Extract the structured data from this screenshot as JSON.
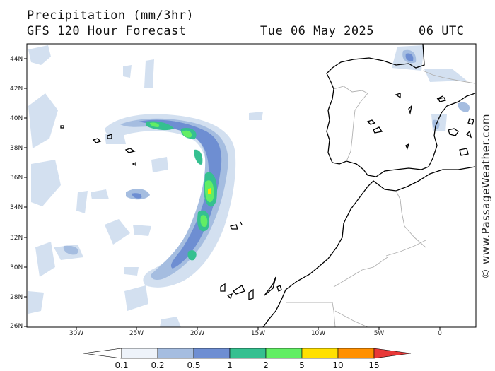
{
  "header": {
    "title": "Precipitation (mm/3hr)",
    "model": "GFS 120 Hour Forecast",
    "date": "Tue 06 May 2025",
    "time": "06 UTC"
  },
  "credit": "© www.PassageWeather.com",
  "axes": {
    "lat_labels": [
      "44N",
      "42N",
      "40N",
      "38N",
      "36N",
      "34N",
      "32N",
      "30N",
      "28N",
      "26N"
    ],
    "lon_labels": [
      "30W",
      "25W",
      "20W",
      "15W",
      "10W",
      "5W",
      "0"
    ]
  },
  "legend": {
    "labels": [
      "0.1",
      "0.2",
      "0.5",
      "1",
      "2",
      "5",
      "10",
      "15"
    ],
    "colors": [
      "#eef3fa",
      "#d3e0f0",
      "#a5bde0",
      "#6e8ed2",
      "#35c090",
      "#62ee64",
      "#ffe000",
      "#ff9000",
      "#e83838"
    ]
  },
  "colors": {
    "land_outline": "#000000",
    "borders": "#b0b0b0",
    "precip_light": "#d3e0f0",
    "precip_mid": "#a5bde0",
    "precip_heavy": "#6e8ed2"
  }
}
